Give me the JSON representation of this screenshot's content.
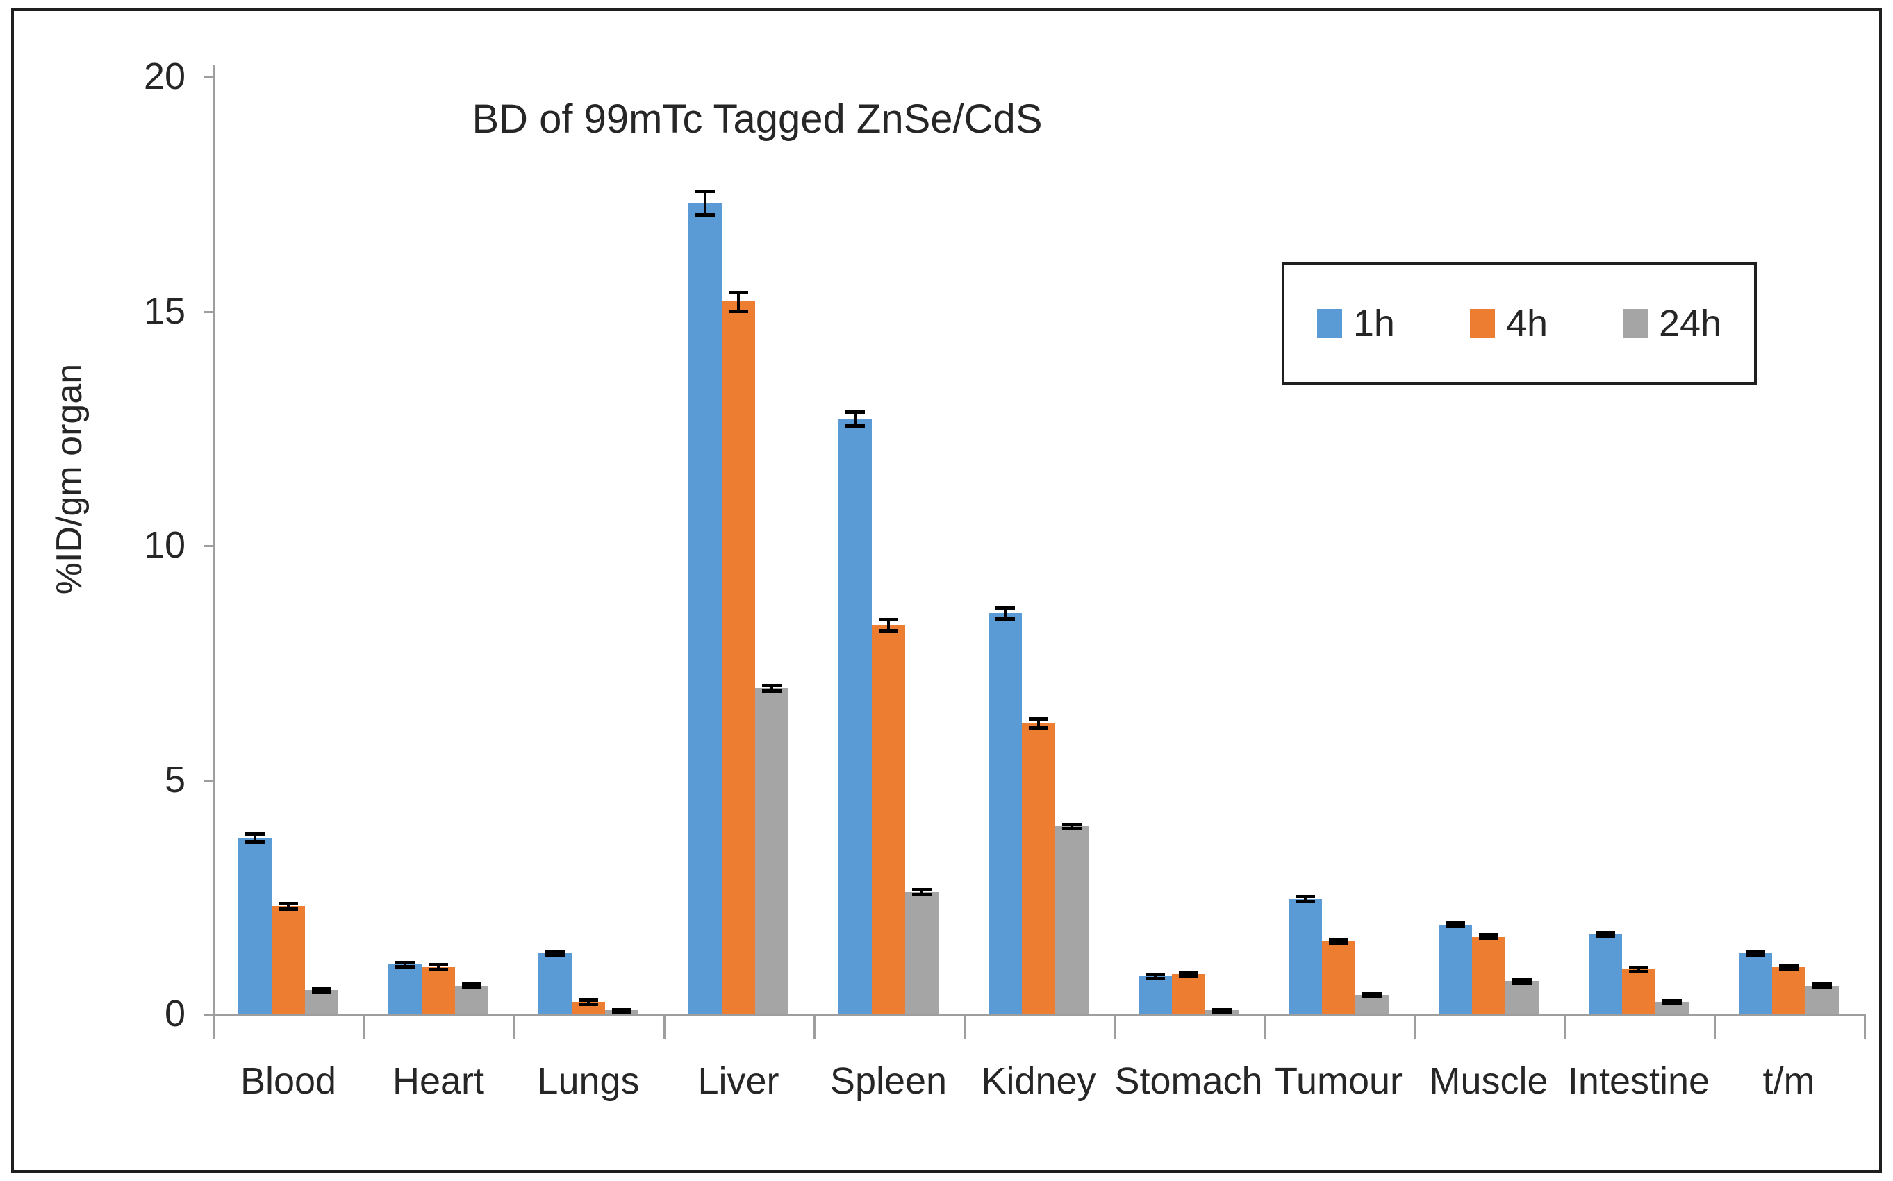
{
  "chart_data": {
    "type": "bar",
    "title": "BD of 99mTc Tagged ZnSe/CdS",
    "ylabel": "%ID/gm organ",
    "xlabel": "",
    "ylim": [
      0,
      20
    ],
    "yticks": [
      0,
      5,
      10,
      15,
      20
    ],
    "grid": false,
    "legend_position": "top-right-inside-box",
    "categories": [
      "Blood",
      "Heart",
      "Lungs",
      "Liver",
      "Spleen",
      "Kidney",
      "Stomach",
      "Tumour",
      "Muscle",
      "Intestine",
      "t/m"
    ],
    "series": [
      {
        "name": "1h",
        "color": "#5B9BD5",
        "values": [
          3.75,
          1.05,
          1.3,
          17.3,
          12.7,
          8.55,
          0.8,
          2.45,
          1.9,
          1.7,
          1.3
        ],
        "errors": [
          0.08,
          0.04,
          0.04,
          0.25,
          0.15,
          0.12,
          0.04,
          0.05,
          0.04,
          0.04,
          0.04
        ]
      },
      {
        "name": "4h",
        "color": "#ED7D31",
        "values": [
          2.3,
          1.0,
          0.25,
          15.2,
          8.3,
          6.2,
          0.85,
          1.55,
          1.65,
          0.95,
          1.0
        ],
        "errors": [
          0.06,
          0.05,
          0.04,
          0.2,
          0.12,
          0.1,
          0.04,
          0.04,
          0.04,
          0.04,
          0.03
        ]
      },
      {
        "name": "24h",
        "color": "#A5A5A5",
        "values": [
          0.5,
          0.6,
          0.07,
          6.95,
          2.6,
          4.0,
          0.07,
          0.4,
          0.7,
          0.25,
          0.6
        ],
        "errors": [
          0.03,
          0.04,
          0.02,
          0.06,
          0.05,
          0.04,
          0.02,
          0.03,
          0.04,
          0.03,
          0.03
        ]
      }
    ],
    "error_bar_color": "#000000",
    "axis_color": "#9e9e9e"
  }
}
